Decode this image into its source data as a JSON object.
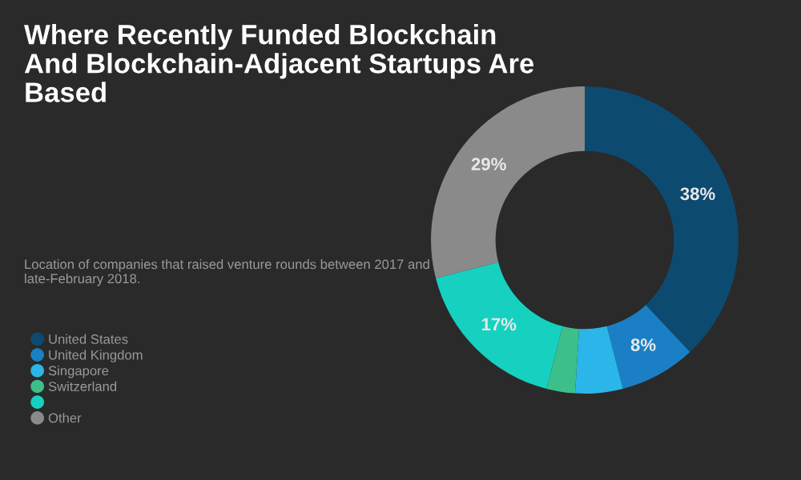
{
  "chart_data": {
    "type": "donut",
    "title": "Where Recently Funded Blockchain And Blockchain-Adjacent Startups Are Based",
    "subtitle": "Location of companies that raised venture rounds between 2017 and late-February 2018.",
    "categories": [
      "United States",
      "United Kingdom",
      "Singapore",
      "Switzerland",
      null,
      "Other"
    ],
    "values": [
      38,
      8,
      5,
      3,
      17,
      29
    ],
    "value_labels": [
      "38%",
      "8%",
      null,
      null,
      "17%",
      "29%"
    ],
    "colors": [
      "#0d4a70",
      "#1a7fc4",
      "#2bb5e8",
      "#3cbf8a",
      "#16d1c0",
      "#8a8a8a"
    ],
    "legend": "left"
  }
}
